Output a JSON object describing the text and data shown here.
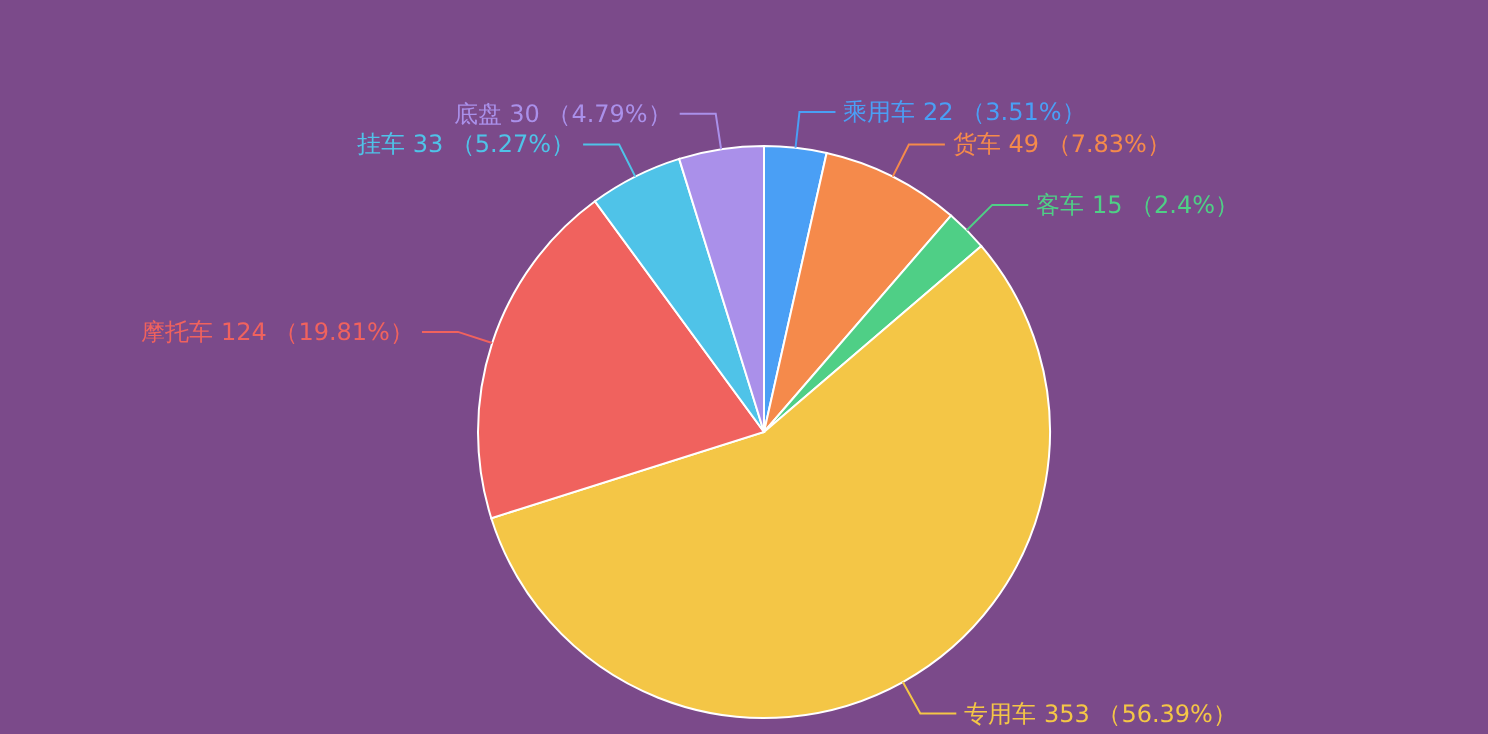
{
  "chart_data": {
    "type": "pie",
    "categories": [
      "乘用车",
      "货车",
      "客车",
      "专用车",
      "摩托车",
      "挂车",
      "底盘"
    ],
    "values": [
      22,
      49,
      15,
      353,
      124,
      33,
      30
    ],
    "value_labels": [
      "22 （3.51%）",
      "49 （7.83%）",
      "15 （2.4%）",
      "353 （56.39%）",
      "124 （19.81%）",
      "33 （5.27%）",
      "30 （4.79%）"
    ],
    "colors": [
      "#4a9ff5",
      "#f58a4b",
      "#4fcf86",
      "#f4c646",
      "#f0625e",
      "#4fc3e8",
      "#aa90ea"
    ]
  }
}
